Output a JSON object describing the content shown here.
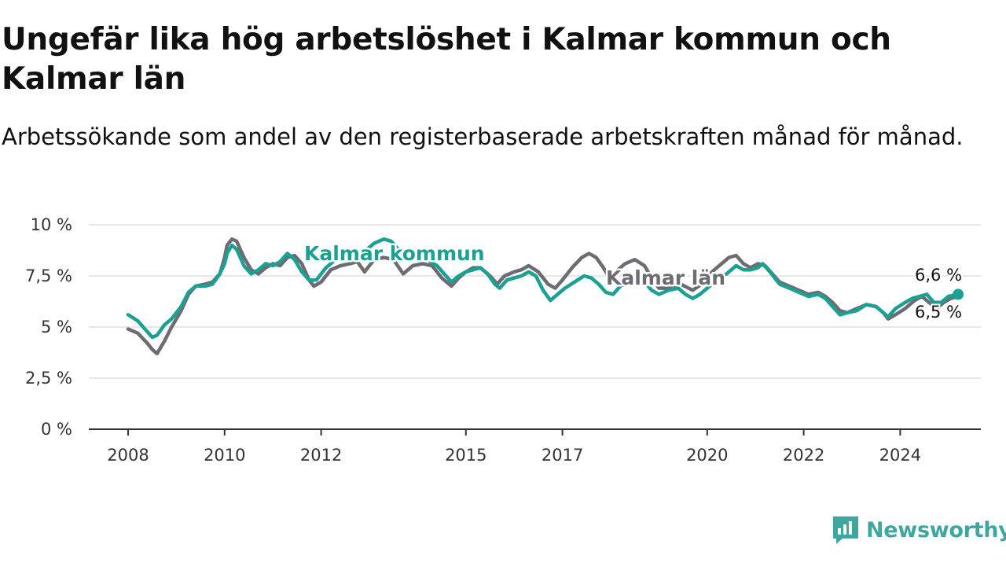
{
  "title": "Ungefär lika hög arbetslöshet i Kalmar kommun och Kalmar län",
  "subtitle": "Arbetssökande som andel av den registerbaserade arbetskraften månad för månad.",
  "brand": {
    "name": "Newsworthy",
    "color": "#3fa6a0",
    "icon": "bar-chart-speech-bubble-icon"
  },
  "chart_data": {
    "type": "line",
    "xlim": [
      2008.0,
      2025.75
    ],
    "ylim": [
      0,
      10
    ],
    "y_ticks": [
      0,
      2.5,
      5,
      7.5,
      10
    ],
    "y_tick_labels": [
      "0 %",
      "2,5 %",
      "5 %",
      "7,5 %",
      "10 %"
    ],
    "x_ticks": [
      2008,
      2010,
      2012,
      2015,
      2017,
      2020,
      2022,
      2024
    ],
    "x_tick_labels": [
      "2008",
      "2010",
      "2012",
      "2015",
      "2017",
      "2020",
      "2022",
      "2024"
    ],
    "grid": "horizontal",
    "series": [
      {
        "name": "Kalmar län",
        "color": "#6d6c72",
        "end_label": "6,5 %",
        "points": [
          [
            2008.0,
            4.9
          ],
          [
            2008.2,
            4.7
          ],
          [
            2008.4,
            4.2
          ],
          [
            2008.5,
            3.9
          ],
          [
            2008.6,
            3.7
          ],
          [
            2008.75,
            4.3
          ],
          [
            2008.9,
            5.0
          ],
          [
            2009.1,
            5.8
          ],
          [
            2009.25,
            6.6
          ],
          [
            2009.4,
            7.0
          ],
          [
            2009.6,
            7.1
          ],
          [
            2009.75,
            7.2
          ],
          [
            2009.9,
            7.6
          ],
          [
            2010.0,
            8.4
          ],
          [
            2010.05,
            9.0
          ],
          [
            2010.15,
            9.3
          ],
          [
            2010.25,
            9.2
          ],
          [
            2010.4,
            8.4
          ],
          [
            2010.55,
            7.8
          ],
          [
            2010.7,
            7.6
          ],
          [
            2010.85,
            7.9
          ],
          [
            2011.0,
            8.1
          ],
          [
            2011.15,
            8.0
          ],
          [
            2011.3,
            8.4
          ],
          [
            2011.45,
            8.5
          ],
          [
            2011.6,
            8.1
          ],
          [
            2011.75,
            7.3
          ],
          [
            2011.85,
            7.0
          ],
          [
            2012.0,
            7.2
          ],
          [
            2012.2,
            7.8
          ],
          [
            2012.4,
            8.0
          ],
          [
            2012.6,
            8.1
          ],
          [
            2012.75,
            8.2
          ],
          [
            2012.9,
            7.7
          ],
          [
            2013.1,
            8.3
          ],
          [
            2013.3,
            8.4
          ],
          [
            2013.5,
            8.3
          ],
          [
            2013.7,
            7.6
          ],
          [
            2013.9,
            8.0
          ],
          [
            2014.1,
            8.1
          ],
          [
            2014.3,
            8.0
          ],
          [
            2014.5,
            7.4
          ],
          [
            2014.7,
            7.0
          ],
          [
            2014.85,
            7.4
          ],
          [
            2015.0,
            7.7
          ],
          [
            2015.15,
            7.9
          ],
          [
            2015.3,
            7.9
          ],
          [
            2015.5,
            7.5
          ],
          [
            2015.65,
            7.1
          ],
          [
            2015.8,
            7.5
          ],
          [
            2016.0,
            7.7
          ],
          [
            2016.15,
            7.8
          ],
          [
            2016.3,
            8.0
          ],
          [
            2016.5,
            7.7
          ],
          [
            2016.7,
            7.1
          ],
          [
            2016.85,
            6.9
          ],
          [
            2017.0,
            7.3
          ],
          [
            2017.2,
            7.9
          ],
          [
            2017.4,
            8.4
          ],
          [
            2017.55,
            8.6
          ],
          [
            2017.7,
            8.4
          ],
          [
            2017.85,
            7.9
          ],
          [
            2017.95,
            7.5
          ],
          [
            2018.1,
            7.7
          ],
          [
            2018.3,
            8.1
          ],
          [
            2018.5,
            8.3
          ],
          [
            2018.7,
            8.0
          ],
          [
            2018.85,
            7.4
          ],
          [
            2019.0,
            6.9
          ],
          [
            2019.2,
            6.9
          ],
          [
            2019.45,
            7.1
          ],
          [
            2019.7,
            6.8
          ],
          [
            2019.95,
            7.2
          ],
          [
            2020.1,
            7.7
          ],
          [
            2020.3,
            8.1
          ],
          [
            2020.45,
            8.4
          ],
          [
            2020.6,
            8.5
          ],
          [
            2020.75,
            8.1
          ],
          [
            2020.9,
            7.9
          ],
          [
            2021.05,
            8.1
          ],
          [
            2021.2,
            8.0
          ],
          [
            2021.35,
            7.6
          ],
          [
            2021.5,
            7.2
          ],
          [
            2021.7,
            7.0
          ],
          [
            2021.9,
            6.8
          ],
          [
            2022.1,
            6.6
          ],
          [
            2022.3,
            6.7
          ],
          [
            2022.45,
            6.5
          ],
          [
            2022.6,
            6.2
          ],
          [
            2022.75,
            5.8
          ],
          [
            2022.9,
            5.7
          ],
          [
            2023.1,
            5.9
          ],
          [
            2023.3,
            6.1
          ],
          [
            2023.5,
            6.0
          ],
          [
            2023.65,
            5.7
          ],
          [
            2023.75,
            5.4
          ],
          [
            2023.9,
            5.6
          ],
          [
            2024.1,
            5.9
          ],
          [
            2024.3,
            6.3
          ],
          [
            2024.45,
            6.5
          ],
          [
            2024.6,
            6.2
          ],
          [
            2024.75,
            5.9
          ],
          [
            2024.9,
            6.2
          ],
          [
            2025.05,
            6.4
          ],
          [
            2025.2,
            6.5
          ]
        ]
      },
      {
        "name": "Kalmar kommun",
        "color": "#1ba094",
        "end_label": "6,6 %",
        "points": [
          [
            2008.0,
            5.6
          ],
          [
            2008.2,
            5.3
          ],
          [
            2008.35,
            4.9
          ],
          [
            2008.5,
            4.5
          ],
          [
            2008.6,
            4.6
          ],
          [
            2008.75,
            5.1
          ],
          [
            2008.9,
            5.4
          ],
          [
            2009.1,
            6.0
          ],
          [
            2009.25,
            6.7
          ],
          [
            2009.4,
            7.0
          ],
          [
            2009.6,
            7.0
          ],
          [
            2009.75,
            7.1
          ],
          [
            2009.9,
            7.6
          ],
          [
            2010.0,
            8.1
          ],
          [
            2010.05,
            8.6
          ],
          [
            2010.15,
            9.0
          ],
          [
            2010.25,
            8.8
          ],
          [
            2010.4,
            8.0
          ],
          [
            2010.55,
            7.6
          ],
          [
            2010.7,
            7.8
          ],
          [
            2010.85,
            8.1
          ],
          [
            2011.0,
            8.0
          ],
          [
            2011.15,
            8.2
          ],
          [
            2011.3,
            8.6
          ],
          [
            2011.45,
            8.3
          ],
          [
            2011.6,
            7.7
          ],
          [
            2011.75,
            7.3
          ],
          [
            2011.9,
            7.3
          ],
          [
            2012.1,
            7.9
          ],
          [
            2012.3,
            8.3
          ],
          [
            2012.5,
            8.4
          ],
          [
            2012.7,
            8.5
          ],
          [
            2012.9,
            8.7
          ],
          [
            2013.1,
            9.1
          ],
          [
            2013.3,
            9.3
          ],
          [
            2013.45,
            9.2
          ],
          [
            2013.6,
            8.8
          ],
          [
            2013.8,
            8.3
          ],
          [
            2014.0,
            8.4
          ],
          [
            2014.2,
            8.3
          ],
          [
            2014.4,
            8.0
          ],
          [
            2014.55,
            7.6
          ],
          [
            2014.7,
            7.2
          ],
          [
            2014.85,
            7.5
          ],
          [
            2015.0,
            7.7
          ],
          [
            2015.15,
            7.8
          ],
          [
            2015.3,
            7.9
          ],
          [
            2015.45,
            7.6
          ],
          [
            2015.6,
            7.1
          ],
          [
            2015.7,
            6.9
          ],
          [
            2015.85,
            7.3
          ],
          [
            2016.0,
            7.4
          ],
          [
            2016.15,
            7.5
          ],
          [
            2016.3,
            7.7
          ],
          [
            2016.45,
            7.5
          ],
          [
            2016.6,
            6.8
          ],
          [
            2016.75,
            6.3
          ],
          [
            2016.9,
            6.6
          ],
          [
            2017.05,
            6.9
          ],
          [
            2017.25,
            7.2
          ],
          [
            2017.45,
            7.5
          ],
          [
            2017.6,
            7.4
          ],
          [
            2017.75,
            7.1
          ],
          [
            2017.9,
            6.7
          ],
          [
            2018.05,
            6.6
          ],
          [
            2018.2,
            7.0
          ],
          [
            2018.35,
            7.2
          ],
          [
            2018.5,
            7.4
          ],
          [
            2018.7,
            7.2
          ],
          [
            2018.85,
            6.8
          ],
          [
            2019.0,
            6.6
          ],
          [
            2019.2,
            6.8
          ],
          [
            2019.4,
            6.9
          ],
          [
            2019.55,
            6.6
          ],
          [
            2019.7,
            6.4
          ],
          [
            2019.85,
            6.6
          ],
          [
            2020.0,
            6.9
          ],
          [
            2020.2,
            7.3
          ],
          [
            2020.4,
            7.6
          ],
          [
            2020.6,
            8.0
          ],
          [
            2020.75,
            7.8
          ],
          [
            2020.9,
            7.8
          ],
          [
            2021.05,
            7.9
          ],
          [
            2021.15,
            8.1
          ],
          [
            2021.3,
            7.7
          ],
          [
            2021.5,
            7.1
          ],
          [
            2021.7,
            6.9
          ],
          [
            2021.9,
            6.7
          ],
          [
            2022.1,
            6.5
          ],
          [
            2022.3,
            6.6
          ],
          [
            2022.45,
            6.4
          ],
          [
            2022.6,
            6.0
          ],
          [
            2022.75,
            5.6
          ],
          [
            2022.9,
            5.7
          ],
          [
            2023.1,
            5.8
          ],
          [
            2023.3,
            6.1
          ],
          [
            2023.5,
            6.0
          ],
          [
            2023.65,
            5.7
          ],
          [
            2023.75,
            5.5
          ],
          [
            2023.9,
            5.9
          ],
          [
            2024.1,
            6.2
          ],
          [
            2024.25,
            6.4
          ],
          [
            2024.4,
            6.5
          ],
          [
            2024.55,
            6.6
          ],
          [
            2024.7,
            6.2
          ],
          [
            2024.85,
            6.2
          ],
          [
            2025.0,
            6.5
          ],
          [
            2025.2,
            6.6
          ]
        ]
      }
    ]
  }
}
